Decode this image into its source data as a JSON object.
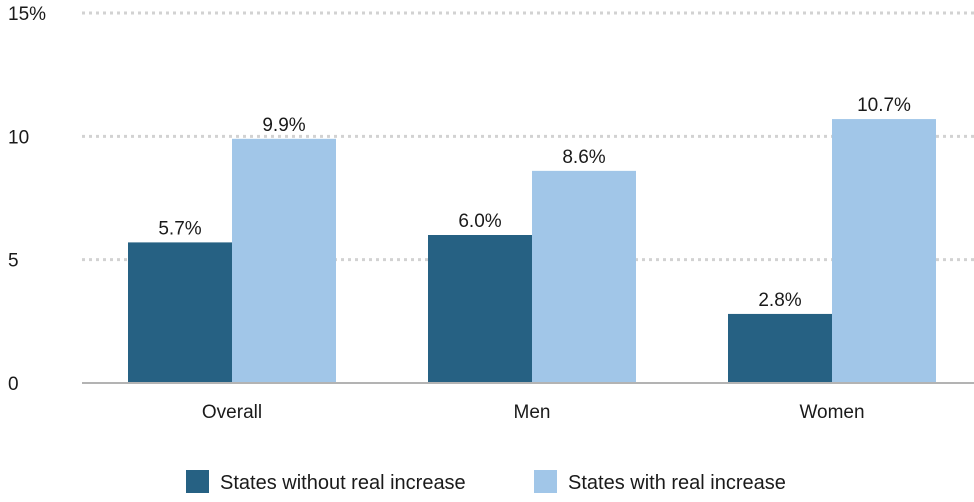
{
  "chart_data": {
    "type": "bar",
    "title": "",
    "xlabel": "",
    "ylabel": "",
    "ylim": [
      0,
      15
    ],
    "yticks": [
      0,
      5,
      10,
      15
    ],
    "ytick_labels": [
      "0",
      "5",
      "10",
      "15%"
    ],
    "categories": [
      "Overall",
      "Men",
      "Women"
    ],
    "series": [
      {
        "name": "States without real increase",
        "color": "#266183",
        "values": [
          5.7,
          6.0,
          2.8
        ],
        "labels": [
          "5.7%",
          "6.0%",
          "2.8%"
        ]
      },
      {
        "name": "States with real increase",
        "color": "#a1c6e8",
        "values": [
          9.9,
          8.6,
          10.7
        ],
        "labels": [
          "9.9%",
          "8.6%",
          "10.7%"
        ]
      }
    ],
    "grid": true,
    "legend_position": "bottom-center"
  }
}
